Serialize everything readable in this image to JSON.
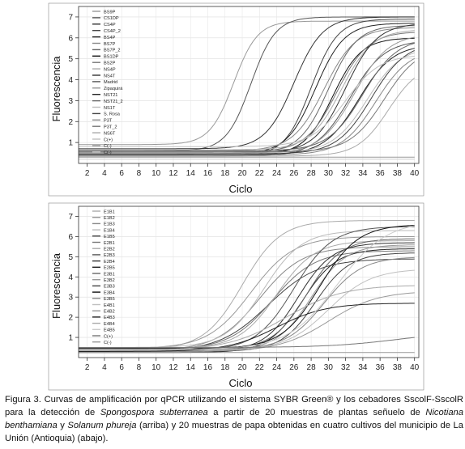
{
  "chart_data": [
    {
      "type": "line",
      "xlabel": "Ciclo",
      "ylabel": "Fluorescencia",
      "xticks": [
        2,
        4,
        6,
        8,
        10,
        12,
        14,
        16,
        18,
        20,
        22,
        24,
        26,
        28,
        30,
        32,
        34,
        36,
        38,
        40
      ],
      "yticks": [
        1,
        2,
        3,
        4,
        5,
        6,
        7
      ],
      "xlim": [
        1,
        40.5
      ],
      "ylim": [
        0,
        7.5
      ],
      "legend_position": "top-left",
      "legend": [
        "BS9P",
        "CS1DP",
        "CS4P",
        "CS4P_2",
        "BS4P",
        "BS7P",
        "BS7P_2",
        "BS1DP",
        "BS2P",
        "NS4P",
        "NS4T",
        "Madrid",
        "Zipaquirá",
        "NST21",
        "NST21_2",
        "NS1T",
        "S. Rosa",
        "P3T",
        "P3T_2",
        "NS6T",
        "C(+)",
        "C(-)",
        "C(-)"
      ],
      "series": [
        {
          "midpoint": 19,
          "plateau": 6.8,
          "base": 0.9,
          "slope": 0.72,
          "color": "#999999"
        },
        {
          "midpoint": 21,
          "plateau": 7.0,
          "base": 0.6,
          "slope": 0.7,
          "color": "#555555"
        },
        {
          "midpoint": 26,
          "plateau": 7.0,
          "base": 0.7,
          "slope": 0.6,
          "color": "#333333"
        },
        {
          "midpoint": 28,
          "plateau": 6.9,
          "base": 0.35,
          "slope": 0.65,
          "color": "#444444"
        },
        {
          "midpoint": 28.5,
          "plateau": 6.7,
          "base": 0.45,
          "slope": 0.6,
          "color": "#222222"
        },
        {
          "midpoint": 29.5,
          "plateau": 6.5,
          "base": 0.6,
          "slope": 0.55,
          "color": "#888888"
        },
        {
          "midpoint": 30,
          "plateau": 6.6,
          "base": 0.5,
          "slope": 0.6,
          "color": "#666666"
        },
        {
          "midpoint": 30.5,
          "plateau": 6.0,
          "base": 0.4,
          "slope": 0.6,
          "color": "#111111"
        },
        {
          "midpoint": 31,
          "plateau": 6.3,
          "base": 0.55,
          "slope": 0.55,
          "color": "#777777"
        },
        {
          "midpoint": 31.5,
          "plateau": 6.4,
          "base": 0.65,
          "slope": 0.55,
          "color": "#aaaaaa"
        },
        {
          "midpoint": 32,
          "plateau": 6.7,
          "base": 0.5,
          "slope": 0.55,
          "color": "#333333"
        },
        {
          "midpoint": 32.5,
          "plateau": 5.9,
          "base": 0.35,
          "slope": 0.5,
          "color": "#555555"
        },
        {
          "midpoint": 33,
          "plateau": 6.2,
          "base": 0.45,
          "slope": 0.5,
          "color": "#999999"
        },
        {
          "midpoint": 33.5,
          "plateau": 5.7,
          "base": 0.4,
          "slope": 0.5,
          "color": "#222222"
        },
        {
          "midpoint": 34,
          "plateau": 6.0,
          "base": 0.6,
          "slope": 0.5,
          "color": "#666666"
        },
        {
          "midpoint": 34.5,
          "plateau": 5.6,
          "base": 0.5,
          "slope": 0.5,
          "color": "#bbbbbb"
        },
        {
          "midpoint": 35,
          "plateau": 5.8,
          "base": 0.45,
          "slope": 0.5,
          "color": "#444444"
        },
        {
          "midpoint": 35.5,
          "plateau": 5.5,
          "base": 0.4,
          "slope": 0.5,
          "color": "#888888"
        },
        {
          "midpoint": 36.5,
          "plateau": 5.6,
          "base": 0.55,
          "slope": 0.5,
          "color": "#777777"
        },
        {
          "midpoint": 37,
          "plateau": 4.8,
          "base": 0.35,
          "slope": 0.55,
          "color": "#aaaaaa"
        },
        {
          "midpoint": 32,
          "plateau": 5.2,
          "base": 0.8,
          "slope": 0.5,
          "color": "#c0c0c0"
        },
        {
          "midpoint": 60,
          "plateau": 1.0,
          "base": 0.3,
          "slope": 0.3,
          "color": "#999999"
        },
        {
          "midpoint": 60,
          "plateau": 1.0,
          "base": 0.2,
          "slope": 0.3,
          "color": "#cccccc"
        }
      ]
    },
    {
      "type": "line",
      "xlabel": "Ciclo",
      "ylabel": "Fluorescencia",
      "xticks": [
        2,
        4,
        6,
        8,
        10,
        12,
        14,
        16,
        18,
        20,
        22,
        24,
        26,
        28,
        30,
        32,
        34,
        36,
        38,
        40
      ],
      "yticks": [
        1,
        2,
        3,
        4,
        5,
        6,
        7
      ],
      "xlim": [
        1,
        40.5
      ],
      "ylim": [
        0,
        7.5
      ],
      "legend_position": "top-left",
      "legend": [
        "E1B1",
        "E1B2",
        "E1B3",
        "E1B4",
        "E1B5",
        "E2B1",
        "E2B2",
        "E2B3",
        "E2B4",
        "E2B5",
        "E3B1",
        "E3B2",
        "E3B3",
        "E3B4",
        "E3B5",
        "E4B1",
        "E4B2",
        "E4B3",
        "E4B4",
        "E4B5",
        "C(+)",
        "C(-)"
      ],
      "series": [
        {
          "midpoint": 20,
          "plateau": 6.8,
          "base": 0.4,
          "slope": 0.45,
          "color": "#aaaaaa"
        },
        {
          "midpoint": 21,
          "plateau": 6.0,
          "base": 0.45,
          "slope": 0.4,
          "color": "#999999"
        },
        {
          "midpoint": 22,
          "plateau": 5.5,
          "base": 0.35,
          "slope": 0.4,
          "color": "#888888"
        },
        {
          "midpoint": 22.5,
          "plateau": 6.3,
          "base": 0.5,
          "slope": 0.45,
          "color": "#bbbbbb"
        },
        {
          "midpoint": 23,
          "plateau": 4.9,
          "base": 0.3,
          "slope": 0.35,
          "color": "#444444"
        },
        {
          "midpoint": 23.5,
          "plateau": 5.3,
          "base": 0.4,
          "slope": 0.4,
          "color": "#777777"
        },
        {
          "midpoint": 24,
          "plateau": 5.8,
          "base": 0.45,
          "slope": 0.45,
          "color": "#aaaaaa"
        },
        {
          "midpoint": 26,
          "plateau": 6.5,
          "base": 0.35,
          "slope": 0.45,
          "color": "#555555"
        },
        {
          "midpoint": 26.5,
          "plateau": 5.7,
          "base": 0.3,
          "slope": 0.5,
          "color": "#333333"
        },
        {
          "midpoint": 27,
          "plateau": 5.4,
          "base": 0.25,
          "slope": 0.5,
          "color": "#222222"
        },
        {
          "midpoint": 27.5,
          "plateau": 5.9,
          "base": 0.4,
          "slope": 0.5,
          "color": "#666666"
        },
        {
          "midpoint": 28,
          "plateau": 5.6,
          "base": 0.35,
          "slope": 0.5,
          "color": "#999999"
        },
        {
          "midpoint": 28.5,
          "plateau": 5.2,
          "base": 0.3,
          "slope": 0.5,
          "color": "#444444"
        },
        {
          "midpoint": 29,
          "plateau": 6.6,
          "base": 0.45,
          "slope": 0.45,
          "color": "#111111"
        },
        {
          "midpoint": 29.5,
          "plateau": 5.0,
          "base": 0.4,
          "slope": 0.45,
          "color": "#888888"
        },
        {
          "midpoint": 30,
          "plateau": 4.4,
          "base": 0.35,
          "slope": 0.4,
          "color": "#c0c0c0"
        },
        {
          "midpoint": 30,
          "plateau": 3.3,
          "base": 0.3,
          "slope": 0.35,
          "color": "#999999"
        },
        {
          "midpoint": 24,
          "plateau": 2.7,
          "base": 0.3,
          "slope": 0.35,
          "color": "#222222"
        },
        {
          "midpoint": 25,
          "plateau": 3.6,
          "base": 0.35,
          "slope": 0.3,
          "color": "#aaaaaa"
        },
        {
          "midpoint": 31,
          "plateau": 6.8,
          "base": 0.4,
          "slope": 0.35,
          "color": "#cccccc"
        },
        {
          "midpoint": 38,
          "plateau": 1.3,
          "base": 0.5,
          "slope": 0.25,
          "color": "#777777"
        },
        {
          "midpoint": 60,
          "plateau": 0.6,
          "base": 0.25,
          "slope": 0.3,
          "color": "#999999"
        }
      ]
    }
  ],
  "caption": {
    "p1": "Figura 3. Curvas de amplificación por qPCR utilizando el sistema SYBR Green® y los cebadores SscolF-SscolR para la detección de ",
    "i1": "Spongospora subterranea",
    "p2": " a partir de 20 muestras de plantas señuelo de ",
    "i2": "Nicotiana benthamiana",
    "p3": " y ",
    "i3": "Solanum phureja",
    "p4": " (arriba) y 20 muestras de papa obtenidas en cuatro cultivos del municipio de La Unión (Antioquia) (abajo)."
  }
}
